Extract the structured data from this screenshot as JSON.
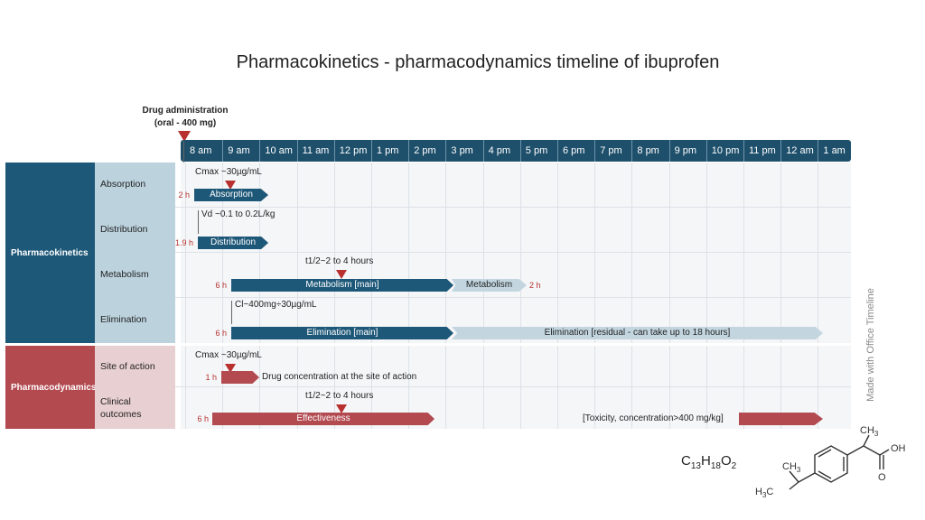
{
  "title": "Pharmacokinetics - pharmacodynamics timeline of ibuprofen",
  "administration": {
    "line1": "Drug administration",
    "line2": "(oral - 400 mg)"
  },
  "hours": [
    "8 am",
    "9 am",
    "10 am",
    "11 am",
    "12 pm",
    "1 pm",
    "2 pm",
    "3 pm",
    "4 pm",
    "5 pm",
    "6 pm",
    "7 pm",
    "8 pm",
    "9 pm",
    "10 pm",
    "11 pm",
    "12 am",
    "1 am"
  ],
  "colors": {
    "pk_dark": "#1e5878",
    "pk_light": "#bcd3de",
    "pd_dark": "#b24a50",
    "pd_light": "#e8cfd1",
    "bar_light": "#c3d6e0",
    "marker": "#b8312f"
  },
  "pharmacokinetics": {
    "label": "Pharmacokinetics",
    "absorption": {
      "label": "Absorption",
      "note": "Cmax ~30µg/mL",
      "duration": "2 h",
      "bar": "Absorption"
    },
    "distribution": {
      "label": "Distribution",
      "note": "Vd ~0.1 to 0.2L/kg",
      "duration": "1.9 h",
      "bar": "Distribution"
    },
    "metabolism": {
      "label": "Metabolism",
      "note": "t1/2~2 to 4 hours",
      "duration": "6 h",
      "bar_main": "Metabolism [main]",
      "bar_second": "Metabolism",
      "second_duration": "2 h"
    },
    "elimination": {
      "label": "Elimination",
      "note": "Cl~400mg÷30µg/mL",
      "duration": "6 h",
      "bar_main": "Elimination [main]",
      "bar_second": "Elimination [residual - can take up to 18 hours]"
    }
  },
  "pharmacodynamics": {
    "label": "Pharmacodynamics",
    "site": {
      "label": "Site of action",
      "note": "Cmax ~30µg/mL",
      "duration": "1 h",
      "bar_text": "Drug concentration at the site of action"
    },
    "clinical": {
      "label_line1": "Clinical",
      "label_line2": "outcomes",
      "note": "t1/2~2 to 4 hours",
      "duration": "6 h",
      "bar": "Effectiveness",
      "toxicity": "[Toxicity, concentration>400 mg/kg]"
    }
  },
  "formula": {
    "c": "C",
    "c_n": "13",
    "h": "H",
    "h_n": "18",
    "o": "O",
    "o_n": "2"
  },
  "watermark": "Made with  Office Timeline",
  "structure_labels": {
    "ch3_top": "CH",
    "ch3_top_sub": "3",
    "oh": "OH",
    "o": "O",
    "ch3_mid": "CH",
    "ch3_mid_sub": "3",
    "h3c": "H",
    "h3c_sub": "3",
    "h3c_c": "C"
  }
}
